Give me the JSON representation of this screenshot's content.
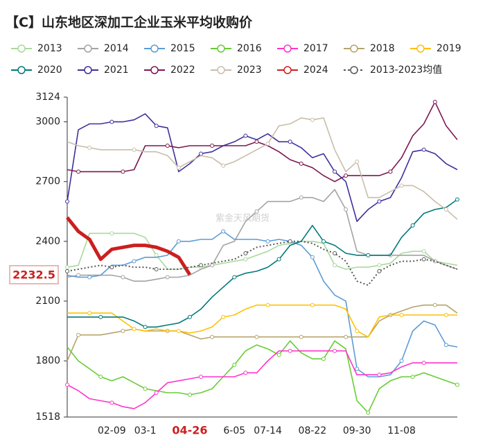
{
  "chart_data": {
    "type": "line",
    "title": "【C】山东地区深加工企业玉米平均收购价",
    "watermark": "紫金天风期货",
    "current_value": 2232.5,
    "categories": [
      null,
      null,
      null,
      null,
      "02-09",
      null,
      null,
      "03-1",
      null,
      null,
      null,
      "04-26",
      null,
      null,
      null,
      "6-05",
      null,
      null,
      "07-14",
      null,
      null,
      null,
      "08-22",
      null,
      null,
      null,
      "09-30",
      null,
      null,
      null,
      "11-08",
      null,
      null,
      null,
      null,
      null
    ],
    "ylim": [
      1518,
      3124
    ],
    "yticks": [
      1518,
      1800,
      2100,
      2400,
      2700,
      3000,
      3124
    ],
    "grid": false,
    "series": [
      {
        "name": "2013",
        "color": "#a9d99b",
        "values": [
          2270,
          2280,
          2440,
          2440,
          2440,
          2440,
          2440,
          2420,
          2330,
          2260,
          2260,
          2270,
          2270,
          2280,
          2290,
          2300,
          2310,
          2330,
          2350,
          2380,
          2390,
          2400,
          2400,
          2390,
          2280,
          2260,
          2270,
          2270,
          2280,
          2290,
          2340,
          2350,
          2350,
          2300,
          2290,
          2280
        ]
      },
      {
        "name": "2014",
        "color": "#a3a3a3",
        "values": [
          2220,
          2230,
          2230,
          2230,
          2230,
          2220,
          2200,
          2200,
          2210,
          2220,
          2220,
          2230,
          2260,
          2280,
          2380,
          2400,
          2500,
          2550,
          2600,
          2600,
          2600,
          2620,
          2620,
          2600,
          2660,
          2560,
          2350,
          2330,
          2330,
          2330,
          2330,
          2330,
          2330,
          2300,
          2280,
          2260
        ]
      },
      {
        "name": "2015",
        "color": "#5b9bd5",
        "values": [
          2230,
          2220,
          2220,
          2230,
          2280,
          2280,
          2300,
          2320,
          2320,
          2330,
          2400,
          2400,
          2410,
          2410,
          2450,
          2410,
          2410,
          2410,
          2400,
          2410,
          2400,
          2380,
          2320,
          2200,
          2130,
          2100,
          1760,
          1720,
          1720,
          1730,
          1800,
          1950,
          2000,
          1980,
          1880,
          1870
        ]
      },
      {
        "name": "2016",
        "color": "#66cc33",
        "values": [
          1870,
          1800,
          1760,
          1720,
          1700,
          1720,
          1690,
          1660,
          1650,
          1640,
          1640,
          1630,
          1640,
          1660,
          1720,
          1780,
          1850,
          1880,
          1860,
          1830,
          1900,
          1840,
          1810,
          1810,
          1900,
          1860,
          1600,
          1540,
          1660,
          1700,
          1720,
          1720,
          1740,
          1720,
          1700,
          1680
        ]
      },
      {
        "name": "2017",
        "color": "#ff33cc",
        "values": [
          1680,
          1650,
          1610,
          1600,
          1590,
          1570,
          1560,
          1590,
          1640,
          1690,
          1700,
          1710,
          1720,
          1720,
          1720,
          1720,
          1740,
          1740,
          1800,
          1850,
          1850,
          1850,
          1850,
          1850,
          1850,
          1850,
          1730,
          1730,
          1730,
          1740,
          1770,
          1790,
          1790,
          1790,
          1790,
          1790
        ]
      },
      {
        "name": "2018",
        "color": "#b5a36a",
        "values": [
          1800,
          1930,
          1930,
          1930,
          1940,
          1950,
          1960,
          1950,
          1950,
          1950,
          1950,
          1930,
          1910,
          1920,
          1920,
          1920,
          1920,
          1920,
          1920,
          1920,
          1920,
          1920,
          1920,
          1920,
          1920,
          1920,
          1920,
          1920,
          2000,
          2030,
          2050,
          2070,
          2080,
          2080,
          2080,
          2040
        ]
      },
      {
        "name": "2019",
        "color": "#ffc000",
        "values": [
          2040,
          2040,
          2040,
          2040,
          2040,
          2000,
          1960,
          1950,
          1960,
          1950,
          1950,
          1940,
          1950,
          1970,
          2020,
          2030,
          2060,
          2080,
          2080,
          2080,
          2080,
          2080,
          2080,
          2080,
          2080,
          2060,
          1950,
          1920,
          2020,
          2030,
          2030,
          2030,
          2030,
          2030,
          2030,
          2030
        ]
      },
      {
        "name": "2020",
        "color": "#00797a",
        "values": [
          2020,
          2020,
          2020,
          2020,
          2020,
          2020,
          2000,
          1970,
          1970,
          1980,
          1990,
          2020,
          2060,
          2120,
          2170,
          2220,
          2240,
          2250,
          2270,
          2310,
          2380,
          2400,
          2480,
          2400,
          2380,
          2340,
          2330,
          2330,
          2330,
          2330,
          2420,
          2480,
          2540,
          2560,
          2570,
          2610
        ]
      },
      {
        "name": "2021",
        "color": "#3d2f9c",
        "values": [
          2600,
          2960,
          2990,
          2990,
          3000,
          3000,
          3010,
          3040,
          2980,
          2970,
          2750,
          2790,
          2840,
          2850,
          2880,
          2900,
          2930,
          2910,
          2940,
          2900,
          2900,
          2870,
          2820,
          2840,
          2750,
          2700,
          2500,
          2560,
          2600,
          2620,
          2720,
          2850,
          2860,
          2840,
          2790,
          2760
        ]
      },
      {
        "name": "2022",
        "color": "#7b1750",
        "values": [
          2760,
          2750,
          2750,
          2750,
          2750,
          2750,
          2760,
          2880,
          2880,
          2880,
          2870,
          2880,
          2880,
          2880,
          2880,
          2880,
          2880,
          2900,
          2880,
          2850,
          2810,
          2790,
          2770,
          2730,
          2700,
          2730,
          2730,
          2730,
          2730,
          2750,
          2820,
          2930,
          2990,
          3100,
          2980,
          2910
        ]
      },
      {
        "name": "2023",
        "color": "#c9bda9",
        "values": [
          2900,
          2880,
          2870,
          2860,
          2860,
          2860,
          2860,
          2850,
          2850,
          2830,
          2770,
          2800,
          2830,
          2820,
          2780,
          2800,
          2830,
          2860,
          2890,
          2980,
          2990,
          3020,
          3010,
          3020,
          2860,
          2750,
          2800,
          2620,
          2620,
          2650,
          2680,
          2680,
          2650,
          2600,
          2560,
          2510
        ]
      },
      {
        "name": "2024",
        "color": "#cc1f1f",
        "values": [
          2520,
          2450,
          2410,
          2310,
          2360,
          2370,
          2380,
          2380,
          2370,
          2350,
          2320,
          2232.5,
          null,
          null,
          null,
          null,
          null,
          null,
          null,
          null,
          null,
          null,
          null,
          null,
          null,
          null,
          null,
          null,
          null,
          null,
          null,
          null,
          null,
          null,
          null,
          null
        ]
      },
      {
        "name": "2013-2023均值",
        "color": "#555555",
        "dashed": true,
        "values": [
          2250,
          2260,
          2270,
          2280,
          2270,
          2280,
          2270,
          2270,
          2260,
          2260,
          2260,
          2270,
          2280,
          2290,
          2300,
          2310,
          2340,
          2370,
          2380,
          2390,
          2400,
          2400,
          2390,
          2360,
          2340,
          2300,
          2200,
          2180,
          2250,
          2280,
          2300,
          2300,
          2310,
          2300,
          2280,
          2260
        ]
      }
    ]
  }
}
